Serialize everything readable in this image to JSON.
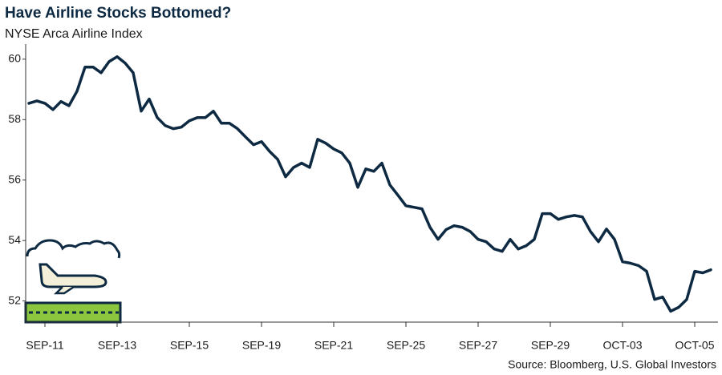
{
  "chart_data": {
    "type": "line",
    "title": "Have Airline Stocks Bottomed?",
    "subtitle": "NYSE Arca Airline Index",
    "source": "Source: Bloomberg, U.S. Global Investors",
    "color": "#0d2a42",
    "ylim": [
      51.3,
      60.5
    ],
    "yticks": [
      52,
      54,
      56,
      58,
      60
    ],
    "grid": false,
    "categories": [
      null,
      null,
      "SEP-11",
      null,
      null,
      null,
      null,
      null,
      null,
      null,
      null,
      "SEP-13",
      null,
      null,
      null,
      null,
      null,
      null,
      null,
      null,
      "SEP-15",
      null,
      null,
      null,
      null,
      null,
      null,
      null,
      null,
      "SEP-19",
      null,
      null,
      null,
      null,
      null,
      null,
      null,
      null,
      "SEP-21",
      null,
      null,
      null,
      null,
      null,
      null,
      null,
      null,
      "SEP-25",
      null,
      null,
      null,
      null,
      null,
      null,
      null,
      null,
      "SEP-27",
      null,
      null,
      null,
      null,
      null,
      null,
      null,
      null,
      "SEP-29",
      null,
      null,
      null,
      null,
      null,
      null,
      null,
      null,
      "OCT-03",
      null,
      null,
      null,
      null,
      null,
      null,
      null,
      null,
      "OCT-05",
      null,
      null
    ],
    "values": [
      58.54,
      58.62,
      58.54,
      58.33,
      58.6,
      58.46,
      58.94,
      59.74,
      59.74,
      59.55,
      59.92,
      60.08,
      59.87,
      59.55,
      58.28,
      58.68,
      58.07,
      57.8,
      57.7,
      57.75,
      57.96,
      58.07,
      58.07,
      58.28,
      57.88,
      57.88,
      57.7,
      57.43,
      57.17,
      57.27,
      56.95,
      56.69,
      56.11,
      56.42,
      56.56,
      56.42,
      57.35,
      57.22,
      57.03,
      56.9,
      56.56,
      55.76,
      56.37,
      56.29,
      56.56,
      55.84,
      55.5,
      55.15,
      55.1,
      55.05,
      54.44,
      54.04,
      54.36,
      54.49,
      54.44,
      54.3,
      54.04,
      53.96,
      53.72,
      53.64,
      54.04,
      53.72,
      53.83,
      54.04,
      54.89,
      54.89,
      54.7,
      54.78,
      54.83,
      54.78,
      54.3,
      53.96,
      54.38,
      54.04,
      53.3,
      53.25,
      53.17,
      52.98,
      52.05,
      52.13,
      51.66,
      51.79,
      52.05,
      52.98,
      52.93,
      53.03
    ]
  }
}
